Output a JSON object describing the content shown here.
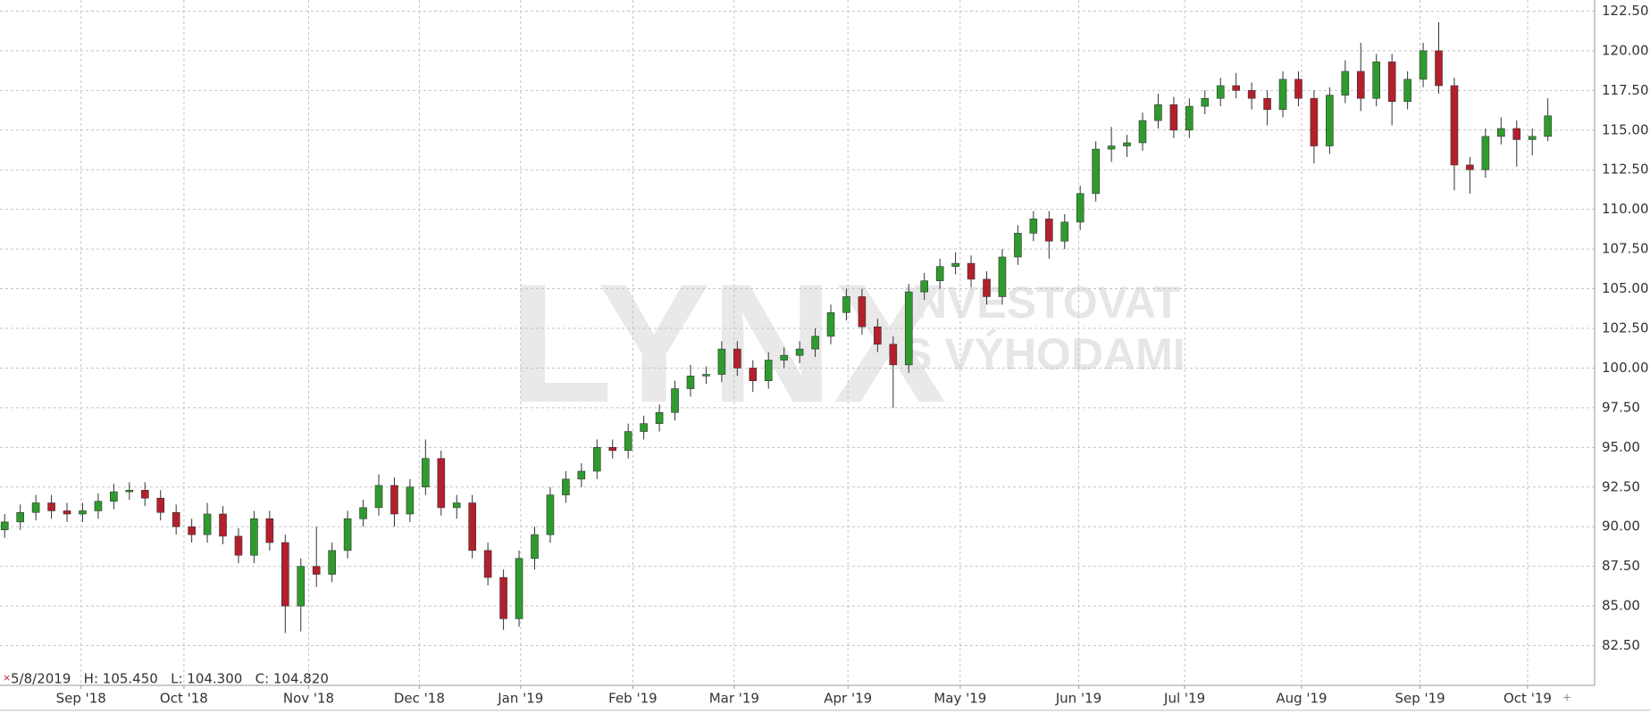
{
  "chart_data": {
    "type": "candlestick",
    "info": "5/8/2019   H: 105.450   L: 104.300   C: 104.820",
    "watermark": [
      "LYNX",
      "INVESTOVAT",
      "S VÝHODAMI"
    ],
    "up_color": "#2e9b2e",
    "down_color": "#b3202c",
    "wick_color": "#333333",
    "grid": true,
    "xlim": [
      -0.3,
      102
    ],
    "xticks": [
      {
        "value": 4.9,
        "label": "Sep '18"
      },
      {
        "value": 11.5,
        "label": "Oct '18"
      },
      {
        "value": 19.5,
        "label": "Nov '18"
      },
      {
        "value": 26.6,
        "label": "Dec '18"
      },
      {
        "value": 33.1,
        "label": "Jan '19"
      },
      {
        "value": 40.3,
        "label": "Feb '19"
      },
      {
        "value": 46.8,
        "label": "Mar '19"
      },
      {
        "value": 54.1,
        "label": "Apr '19"
      },
      {
        "value": 61.3,
        "label": "May '19"
      },
      {
        "value": 68.9,
        "label": "Jun '19"
      },
      {
        "value": 75.7,
        "label": "Jul '19"
      },
      {
        "value": 83.2,
        "label": "Aug '19"
      },
      {
        "value": 90.8,
        "label": "Sep '19"
      },
      {
        "value": 97.7,
        "label": "Oct '19"
      }
    ],
    "ylim": [
      80,
      123.2
    ],
    "yticks": [
      {
        "value": 82.5,
        "label": "82.50"
      },
      {
        "value": 85,
        "label": "85.00"
      },
      {
        "value": 87.5,
        "label": "87.50"
      },
      {
        "value": 90,
        "label": "90.00"
      },
      {
        "value": 92.5,
        "label": "92.50"
      },
      {
        "value": 95,
        "label": "95.00"
      },
      {
        "value": 97.5,
        "label": "97.50"
      },
      {
        "value": 100,
        "label": "100.00"
      },
      {
        "value": 102.5,
        "label": "102.50"
      },
      {
        "value": 105,
        "label": "105.00"
      },
      {
        "value": 107.5,
        "label": "107.50"
      },
      {
        "value": 110,
        "label": "110.00"
      },
      {
        "value": 112.5,
        "label": "112.50"
      },
      {
        "value": 115,
        "label": "115.00"
      },
      {
        "value": 117.5,
        "label": "117.50"
      },
      {
        "value": 120,
        "label": "120.00"
      },
      {
        "value": 122.5,
        "label": "122.50"
      }
    ],
    "open": [
      89.8,
      90.3,
      90.9,
      91.5,
      91.0,
      90.8,
      91.0,
      91.6,
      92.2,
      92.3,
      91.8,
      90.9,
      90.0,
      89.5,
      90.8,
      89.4,
      88.2,
      90.5,
      89.0,
      85.0,
      87.5,
      87.0,
      88.5,
      90.5,
      91.2,
      92.6,
      90.8,
      92.5,
      94.3,
      91.2,
      91.5,
      88.5,
      86.8,
      84.2,
      88.0,
      89.5,
      92.0,
      93.0,
      93.5,
      95.0,
      94.8,
      96.0,
      96.5,
      97.2,
      98.7,
      99.5,
      99.6,
      101.2,
      100.0,
      99.2,
      100.5,
      100.8,
      101.2,
      102.0,
      103.5,
      104.5,
      102.6,
      101.5,
      100.2,
      104.8,
      105.5,
      106.4,
      106.6,
      105.6,
      104.5,
      107.0,
      108.5,
      109.4,
      108.0,
      109.2,
      111.0,
      113.8,
      114.0,
      114.2,
      115.6,
      116.6,
      115.0,
      116.5,
      117.0,
      117.8,
      117.5,
      117.0,
      116.3,
      118.2,
      117.0,
      114.0,
      117.2,
      118.7,
      117.0,
      119.3,
      116.8,
      118.2,
      120.0,
      117.8,
      112.8,
      112.5,
      114.6,
      115.1,
      114.4,
      114.6
    ],
    "high": [
      90.8,
      91.4,
      92.0,
      92.0,
      91.5,
      91.5,
      92.1,
      92.7,
      92.8,
      92.8,
      92.3,
      91.4,
      90.5,
      91.5,
      91.3,
      89.9,
      91.0,
      91.0,
      89.5,
      88.0,
      90.0,
      89.0,
      91.0,
      91.7,
      93.3,
      93.1,
      93.0,
      95.5,
      94.8,
      92.0,
      92.0,
      89.0,
      87.3,
      88.5,
      90.0,
      92.5,
      93.5,
      94.0,
      95.5,
      95.5,
      96.5,
      97.0,
      97.7,
      99.2,
      100.2,
      100.1,
      101.7,
      101.7,
      100.5,
      101.0,
      101.3,
      101.7,
      102.5,
      104.0,
      105.0,
      105.0,
      103.1,
      102.0,
      105.3,
      106.0,
      106.9,
      107.3,
      107.1,
      106.1,
      107.5,
      109.0,
      109.9,
      109.9,
      109.7,
      111.5,
      114.3,
      115.2,
      114.7,
      116.1,
      117.3,
      117.1,
      117.0,
      117.5,
      118.3,
      118.6,
      118.0,
      117.5,
      118.7,
      118.7,
      117.5,
      117.7,
      119.4,
      120.5,
      119.8,
      119.8,
      118.7,
      120.5,
      121.8,
      118.3,
      113.3,
      115.1,
      115.8,
      115.6,
      115.1,
      117.0
    ],
    "low": [
      89.3,
      89.8,
      90.4,
      90.5,
      90.3,
      90.3,
      90.5,
      91.1,
      91.7,
      91.3,
      90.4,
      89.5,
      89.0,
      89.0,
      88.9,
      87.7,
      87.7,
      88.5,
      83.3,
      83.4,
      86.2,
      86.5,
      88.0,
      90.0,
      90.7,
      90.0,
      90.3,
      92.0,
      90.7,
      90.5,
      88.0,
      86.3,
      83.5,
      83.7,
      87.3,
      89.0,
      91.5,
      92.5,
      93.0,
      94.3,
      94.3,
      95.5,
      96.0,
      96.7,
      98.2,
      99.0,
      99.1,
      99.5,
      98.5,
      98.7,
      100.0,
      100.3,
      100.7,
      101.5,
      103.0,
      102.1,
      101.0,
      97.5,
      99.7,
      104.3,
      105.0,
      105.9,
      105.1,
      104.0,
      104.0,
      106.5,
      108.0,
      106.9,
      107.5,
      108.7,
      110.5,
      113.0,
      113.3,
      113.7,
      115.1,
      114.5,
      114.5,
      116.0,
      116.5,
      117.0,
      116.3,
      115.3,
      115.8,
      116.5,
      112.9,
      113.5,
      116.7,
      116.2,
      116.5,
      115.3,
      116.3,
      117.7,
      117.3,
      111.2,
      111.0,
      112.0,
      114.1,
      112.7,
      113.4,
      114.3
    ],
    "close": [
      90.3,
      90.9,
      91.5,
      91.0,
      90.8,
      91.0,
      91.6,
      92.2,
      92.3,
      91.8,
      90.9,
      90.0,
      89.5,
      90.8,
      89.4,
      88.2,
      90.5,
      89.0,
      85.0,
      87.5,
      87.0,
      88.5,
      90.5,
      91.2,
      92.6,
      90.8,
      92.5,
      94.3,
      91.2,
      91.5,
      88.5,
      86.8,
      84.2,
      88.0,
      89.5,
      92.0,
      93.0,
      93.5,
      95.0,
      94.8,
      96.0,
      96.5,
      97.2,
      98.7,
      99.5,
      99.6,
      101.2,
      100.0,
      99.2,
      100.5,
      100.8,
      101.2,
      102.0,
      103.5,
      104.5,
      102.6,
      101.5,
      100.2,
      104.8,
      105.5,
      106.4,
      106.6,
      105.6,
      104.5,
      107.0,
      108.5,
      109.4,
      108.0,
      109.2,
      111.0,
      113.8,
      114.0,
      114.2,
      115.6,
      116.6,
      115.0,
      116.5,
      117.0,
      117.8,
      117.5,
      117.0,
      116.3,
      118.2,
      117.0,
      114.0,
      117.2,
      118.7,
      117.0,
      119.3,
      116.8,
      118.2,
      120.0,
      117.8,
      112.8,
      112.5,
      114.6,
      115.1,
      114.4,
      114.6,
      115.9
    ]
  }
}
